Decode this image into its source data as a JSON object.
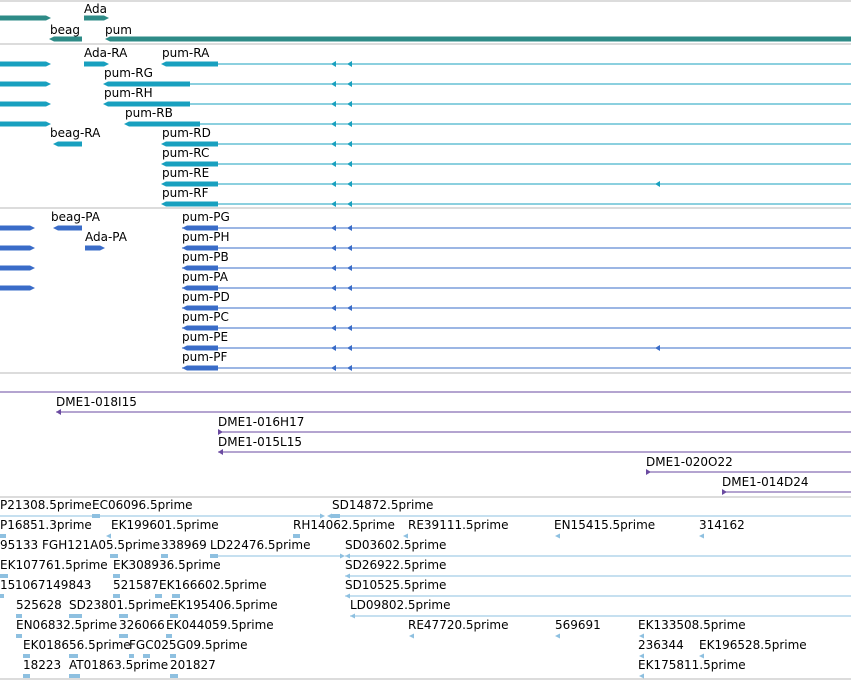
{
  "colors": {
    "gene": "#2e8b87",
    "transcript": "#18a0bf",
    "protein": "#3a6cc8",
    "bac": "#6a4aa0",
    "est": "#8ec0e0",
    "divider": "#b8b8b8"
  },
  "genes": [
    {
      "label": "Ada"
    },
    {
      "label": "beag"
    },
    {
      "label": "pum"
    }
  ],
  "transcripts": [
    {
      "label": "Ada-RA"
    },
    {
      "label": "pum-RA"
    },
    {
      "label": "pum-RG"
    },
    {
      "label": "pum-RH"
    },
    {
      "label": "pum-RB"
    },
    {
      "label": "beag-RA"
    },
    {
      "label": "pum-RD"
    },
    {
      "label": "pum-RC"
    },
    {
      "label": "pum-RE"
    },
    {
      "label": "pum-RF"
    }
  ],
  "proteins": [
    {
      "label": "beag-PA"
    },
    {
      "label": "pum-PG"
    },
    {
      "label": "Ada-PA"
    },
    {
      "label": "pum-PH"
    },
    {
      "label": "pum-PB"
    },
    {
      "label": "pum-PA"
    },
    {
      "label": "pum-PD"
    },
    {
      "label": "pum-PC"
    },
    {
      "label": "pum-PE"
    },
    {
      "label": "pum-PF"
    }
  ],
  "bac_clones": [
    {
      "label": "DME1-018I15"
    },
    {
      "label": "DME1-016H17"
    },
    {
      "label": "DME1-015L15"
    },
    {
      "label": "DME1-020O22"
    },
    {
      "label": "DME1-014D24"
    }
  ],
  "est_rows": [
    {
      "labels": [
        "P21308.5prime",
        "EC06096.5prime",
        "SD14872.5prime"
      ]
    },
    {
      "labels": [
        "P16851.3prime",
        "EK199601.5prime",
        "RH14062.5prime",
        "RE39111.5prime",
        "EN15415.5prime",
        "314162"
      ]
    },
    {
      "labels": [
        "95133",
        "FGH121A05.5prime",
        "338969",
        "LD22476.5prime",
        "SD03602.5prime"
      ]
    },
    {
      "labels": [
        "EK107761.5prime",
        "EK308936.5prime",
        "SD26922.5prime"
      ]
    },
    {
      "labels": [
        "15",
        "1067149843",
        "521587",
        "EK166602.5prime",
        "SD10525.5prime"
      ]
    },
    {
      "labels": [
        "525628",
        "SD23801.5prime",
        "EK195406.5prime",
        "LD09802.5prime"
      ]
    },
    {
      "labels": [
        "EN06832.5prime",
        "326066",
        "EK044059.5prime",
        "RE47720.5prime",
        "569691",
        "EK133508.5prime"
      ]
    },
    {
      "labels": [
        "EK018656.5prime",
        "FGC025G09.5prime",
        "236344",
        "EK196528.5prime"
      ]
    },
    {
      "labels": [
        "18223",
        "AT01863.5prime",
        "201827",
        "EK175811.5prime"
      ]
    }
  ]
}
